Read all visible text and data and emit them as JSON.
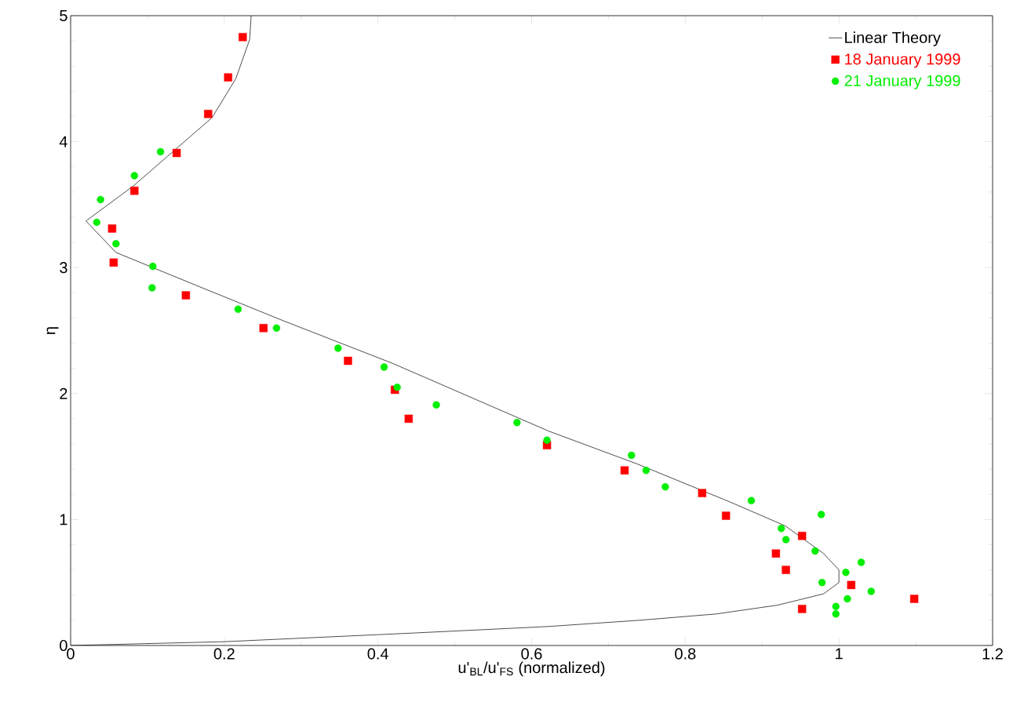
{
  "chart_data": {
    "type": "scatter",
    "xlabel": "u'$_{BL}$/u'$_{FS}$ (normalized)",
    "ylabel": "η",
    "xlim": [
      0,
      1.2
    ],
    "ylim": [
      0,
      5
    ],
    "xticks": [
      0,
      0.2,
      0.4,
      0.6,
      0.8,
      1,
      1.2
    ],
    "yticks": [
      0,
      1,
      2,
      3,
      4,
      5
    ],
    "grid": false,
    "legend": "top right",
    "series": [
      {
        "name": "Linear Theory",
        "type": "line",
        "color": "#000000",
        "marker": "none",
        "line_style": "solid",
        "x": [
          0,
          0.2,
          0.45,
          0.62,
          0.74,
          0.84,
          0.92,
          0.98,
          1.0,
          1.0,
          0.98,
          0.93,
          0.858,
          0.738,
          0.623,
          0.419,
          0.276,
          0.163,
          0.059,
          0.02,
          0.082,
          0.184,
          0.215,
          0.233,
          0.235
        ],
        "values": [
          0,
          0.03,
          0.1,
          0.15,
          0.2,
          0.25,
          0.32,
          0.41,
          0.5,
          0.6,
          0.73,
          0.95,
          1.14,
          1.44,
          1.7,
          2.24,
          2.58,
          2.86,
          3.12,
          3.37,
          3.65,
          4.19,
          4.5,
          4.81,
          5.0
        ]
      },
      {
        "name": "18 January 1999",
        "color": "#ff0000",
        "marker": "square",
        "x": [
          0.224,
          0.205,
          0.179,
          0.138,
          0.083,
          0.054,
          0.056,
          0.15,
          0.251,
          0.361,
          0.422,
          0.44,
          0.62,
          0.721,
          0.822,
          0.853,
          0.952,
          0.918,
          0.931,
          1.016,
          1.098,
          0.952
        ],
        "values": [
          4.83,
          4.51,
          4.22,
          3.91,
          3.61,
          3.31,
          3.04,
          2.78,
          2.52,
          2.26,
          2.03,
          1.8,
          1.59,
          1.39,
          1.21,
          1.03,
          0.87,
          0.73,
          0.6,
          0.48,
          0.37,
          0.29
        ]
      },
      {
        "name": "21 January 1999",
        "color": "#00ee00",
        "marker": "circle",
        "x": [
          0.039,
          0.117,
          0.083,
          0.034,
          0.059,
          0.107,
          0.106,
          0.218,
          0.268,
          0.348,
          0.408,
          0.425,
          0.476,
          0.581,
          0.62,
          0.73,
          0.749,
          0.774,
          0.886,
          0.977,
          0.925,
          0.931,
          0.969,
          1.029,
          1.009,
          0.978,
          1.042,
          1.011,
          0.996,
          0.996
        ],
        "values": [
          3.54,
          3.92,
          3.73,
          3.36,
          3.19,
          3.01,
          2.84,
          2.67,
          2.52,
          2.36,
          2.21,
          2.05,
          1.91,
          1.77,
          1.63,
          1.51,
          1.39,
          1.26,
          1.15,
          1.04,
          0.93,
          0.84,
          0.75,
          0.66,
          0.58,
          0.5,
          0.43,
          0.37,
          0.31,
          0.25
        ]
      }
    ]
  }
}
